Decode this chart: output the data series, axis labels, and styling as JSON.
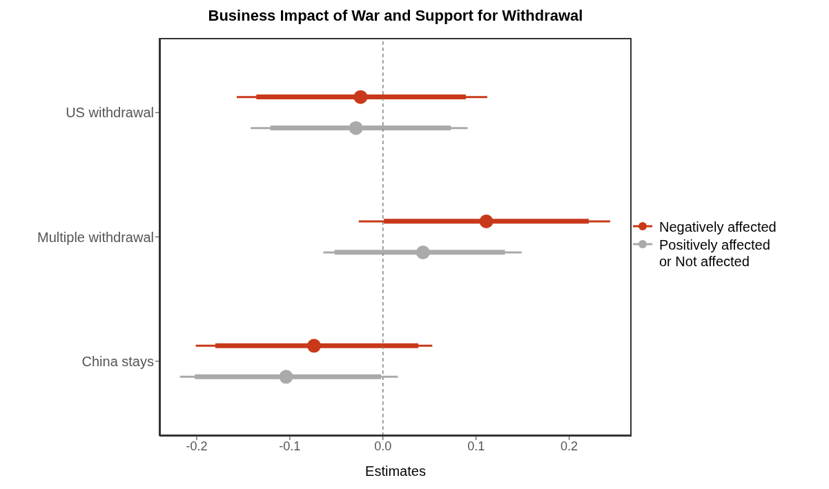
{
  "chart_data": {
    "type": "scatter",
    "orientation": "horizontal",
    "grid": false,
    "title": "Business Impact of War and Support for Withdrawal",
    "xlabel": "Estimates",
    "categories": [
      "US withdrawal",
      "Multiple withdrawal",
      "China stays"
    ],
    "xlim": [
      -0.24,
      0.267
    ],
    "xticks": [
      -0.2,
      -0.1,
      {
        "value": 0,
        "label": "0.0"
      },
      0.1,
      0.2
    ],
    "series": [
      {
        "name": "Negatively affected",
        "color": "#c8391a",
        "values": [
          -0.024,
          0.111,
          -0.074
        ],
        "errors": [
          [
            -0.157,
            0.112
          ],
          [
            -0.026,
            0.244
          ],
          [
            -0.201,
            0.053
          ]
        ]
      },
      {
        "name": "Positively affected or Not affected",
        "color": "#aaaaaa",
        "values": [
          -0.029,
          0.043,
          -0.104
        ],
        "errors": [
          [
            -0.142,
            0.091
          ],
          [
            -0.064,
            0.149
          ],
          [
            -0.218,
            0.016
          ]
        ]
      },
      {
        "type": "bar",
        "color": "#c8391a",
        "base": [
          -0.136,
          0.001,
          -0.18
        ],
        "values": [
          0.225,
          0.22,
          0.218
        ]
      },
      {
        "type": "bar",
        "color": "#aaaaaa",
        "base": [
          -0.121,
          -0.052,
          -0.202
        ],
        "values": [
          0.194,
          0.183,
          0.2
        ]
      }
    ],
    "ref_lines": [
      {
        "axis": "x",
        "value": 0,
        "color": "#808080",
        "line_style": "dashed"
      }
    ],
    "legend": "right",
    "marker": "circle"
  }
}
